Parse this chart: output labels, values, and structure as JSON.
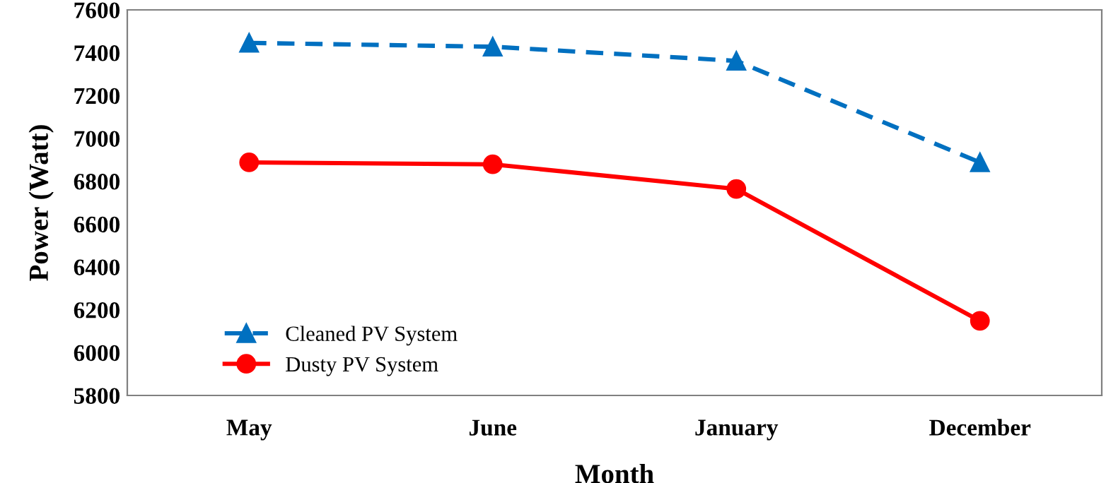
{
  "chart_data": {
    "type": "line",
    "xlabel": "Month",
    "ylabel": "Power (Watt)",
    "categories": [
      "May",
      "June",
      "January",
      "December"
    ],
    "series": [
      {
        "name": "Cleaned PV System",
        "color": "#0070c0",
        "marker": "triangle",
        "line_style": "dashed",
        "values": [
          7446,
          7428,
          7362,
          6888
        ]
      },
      {
        "name": "Dusty PV System",
        "color": "#ff0000",
        "marker": "circle",
        "line_style": "solid",
        "values": [
          6888,
          6879,
          6764,
          6148
        ]
      }
    ],
    "ylim": [
      5800,
      7600
    ],
    "yticks": [
      5800,
      6000,
      6200,
      6400,
      6600,
      6800,
      7000,
      7200,
      7400,
      7600
    ],
    "grid": false,
    "legend": "bottom left"
  }
}
